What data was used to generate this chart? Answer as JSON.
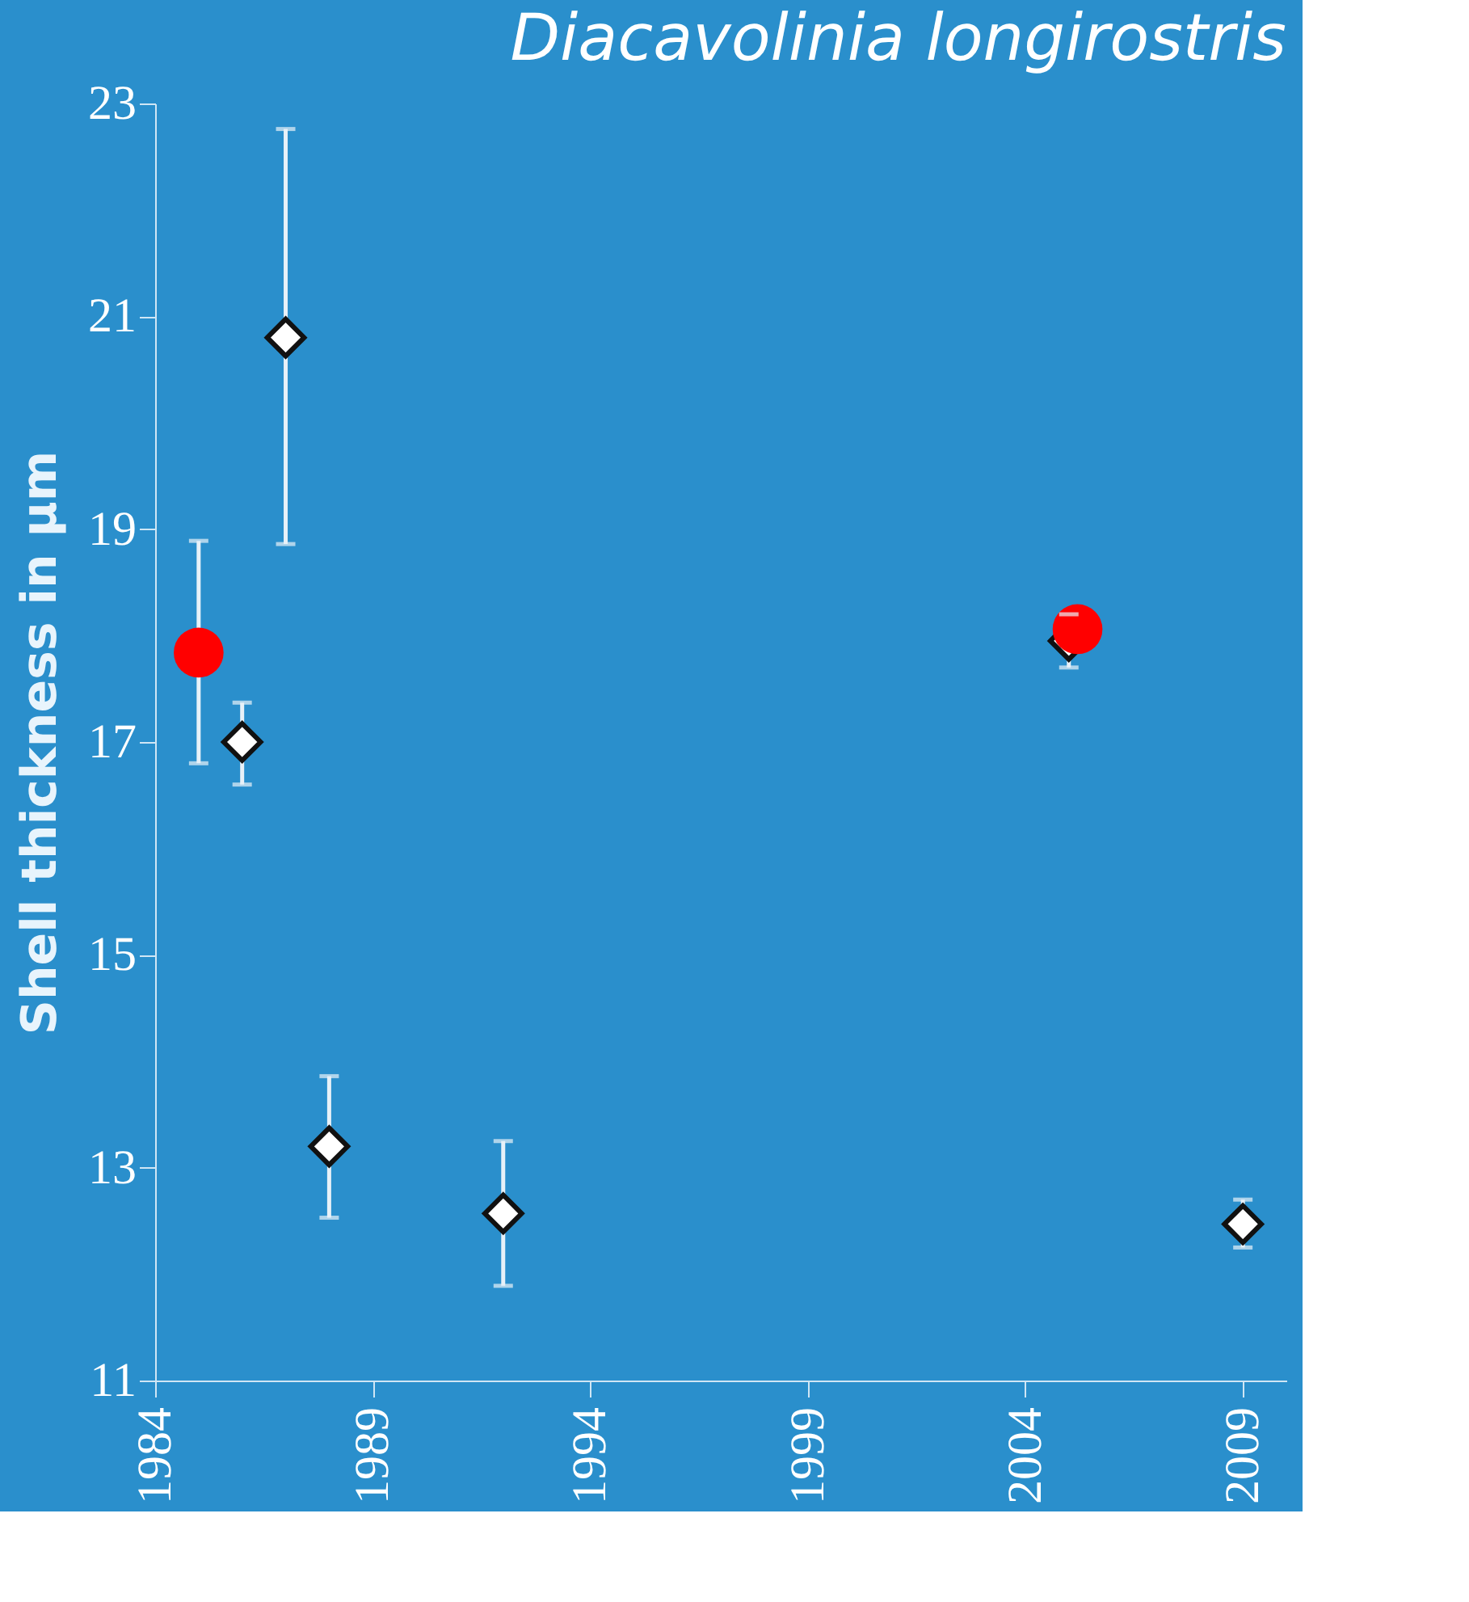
{
  "chart_data": {
    "type": "scatter",
    "title": "Diacavolinia longirostris",
    "ylabel": "Shell thickness in µm",
    "xlim": [
      1984,
      2010
    ],
    "xticks": [
      1984,
      1989,
      1994,
      1999,
      2004,
      2009
    ],
    "ylim": [
      11,
      23
    ],
    "yticks": [
      11,
      13,
      15,
      17,
      19,
      21,
      23
    ],
    "grid": false,
    "series": [
      {
        "color": "#ffffff",
        "marker": "diamond",
        "x": [
          1986,
          1987,
          1988,
          1992,
          2005,
          2009
        ],
        "values": [
          17.0,
          20.8,
          13.2,
          12.57,
          17.95,
          12.47
        ],
        "errors": [
          [
            16.6,
            17.37
          ],
          [
            18.86,
            22.76
          ],
          [
            12.53,
            13.86
          ],
          [
            11.89,
            13.25
          ],
          [
            17.7,
            18.2
          ],
          [
            12.25,
            12.7
          ]
        ]
      },
      {
        "color": "#ff0000",
        "marker": "circle",
        "x": [
          1985,
          2005.2
        ],
        "values": [
          17.84,
          18.06
        ],
        "errors": [
          [
            16.8,
            18.89
          ],
          null
        ]
      }
    ]
  }
}
